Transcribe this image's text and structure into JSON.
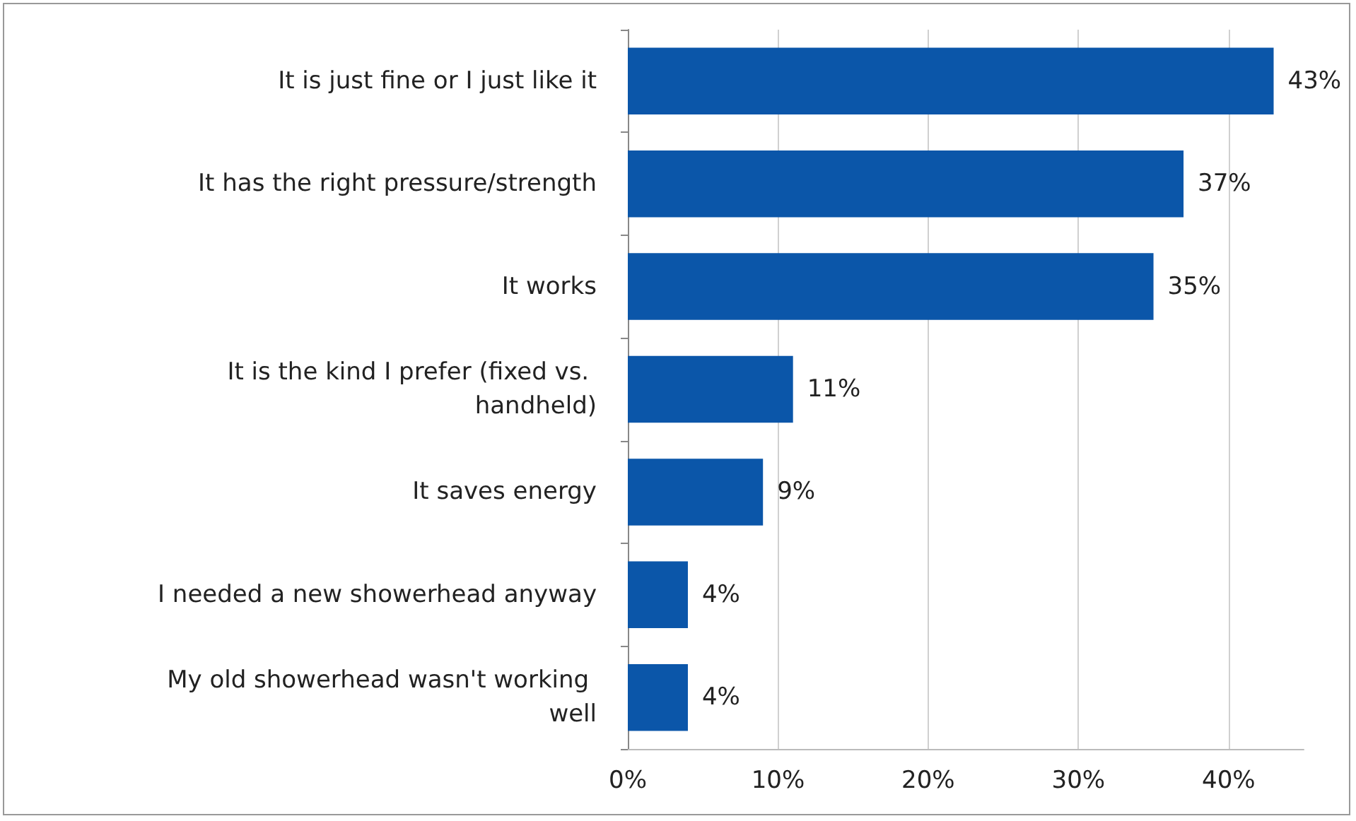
{
  "chart_data": {
    "type": "bar",
    "orientation": "horizontal",
    "categories": [
      "It is just fine or I just like it",
      "It has the right pressure/strength",
      "It works",
      "It is the kind I prefer (fixed vs. handheld)",
      "It saves energy",
      "I needed a new showerhead anyway",
      "My old showerhead wasn't working well"
    ],
    "values": [
      43,
      37,
      35,
      11,
      9,
      4,
      4
    ],
    "value_labels": [
      "43%",
      "37%",
      "35%",
      "11%",
      "9%",
      "4%",
      "4%"
    ],
    "color": "#0b56a9",
    "xlim": [
      0,
      45
    ],
    "xticks": [
      {
        "value": 0,
        "label": "0%"
      },
      {
        "value": 10,
        "label": "10%"
      },
      {
        "value": 20,
        "label": "20%"
      },
      {
        "value": 30,
        "label": "30%"
      },
      {
        "value": 40,
        "label": "40%"
      }
    ],
    "grid": "x"
  }
}
